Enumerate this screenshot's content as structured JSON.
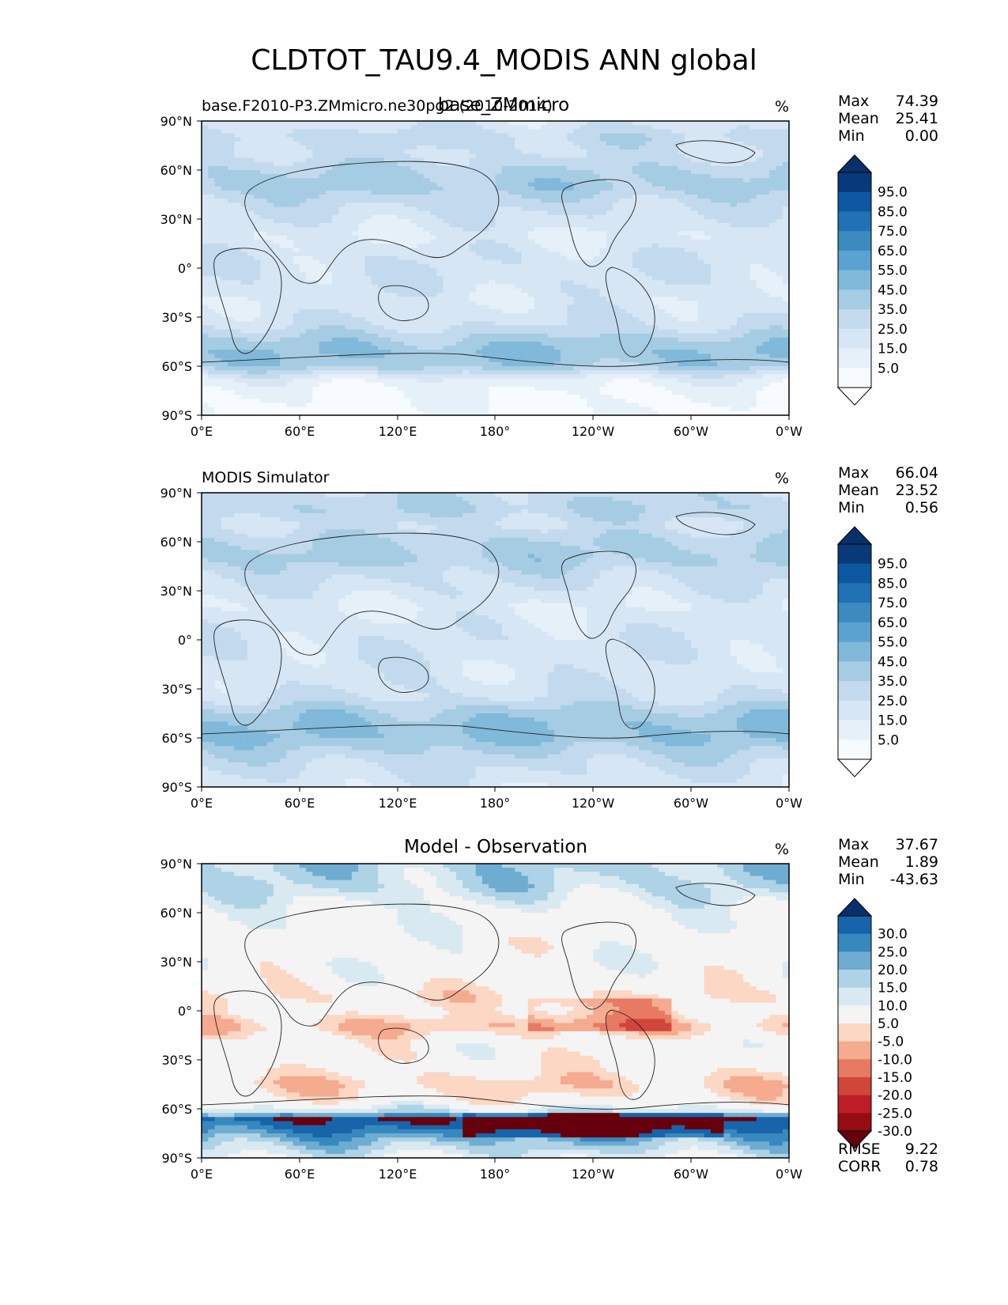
{
  "figure": {
    "title": "CLDTOT_TAU9.4_MODIS ANN global"
  },
  "chart_data": [
    {
      "type": "heatmap",
      "title_left": "base.F2010-P3.ZMmicro.ne30pg2 (2010-2014)",
      "title_center": "base_ZMmicro",
      "title_right": "%",
      "x_ticks": [
        "0°E",
        "60°E",
        "120°E",
        "180°",
        "120°W",
        "60°W",
        "0°W"
      ],
      "y_ticks": [
        "90°S",
        "60°S",
        "30°S",
        "0°",
        "30°N",
        "60°N",
        "90°N"
      ],
      "stats": [
        {
          "label": "Max",
          "value": "74.39"
        },
        {
          "label": "Mean",
          "value": "25.41"
        },
        {
          "label": "Min",
          "value": "0.00"
        }
      ],
      "colorbar": {
        "labels": [
          "95.0",
          "85.0",
          "75.0",
          "65.0",
          "55.0",
          "45.0",
          "35.0",
          "25.0",
          "15.0",
          "5.0"
        ],
        "colors": [
          "#f7fbff",
          "#e6f0f9",
          "#d7e6f4",
          "#c3daee",
          "#a5cce3",
          "#80b9da",
          "#5ba2d0",
          "#3d8ac1",
          "#2271b4",
          "#0d58a1",
          "#083a7a"
        ],
        "extend_top": "#08306b",
        "extend_bottom": "#ffffff"
      },
      "field": {
        "zonal_mean": [
          [
            -90,
            2
          ],
          [
            -75,
            5
          ],
          [
            -68,
            12
          ],
          [
            -60,
            40
          ],
          [
            -52,
            45
          ],
          [
            -45,
            40
          ],
          [
            -35,
            25
          ],
          [
            -20,
            18
          ],
          [
            -10,
            22
          ],
          [
            0,
            23
          ],
          [
            8,
            22
          ],
          [
            20,
            15
          ],
          [
            30,
            22
          ],
          [
            40,
            28
          ],
          [
            50,
            40
          ],
          [
            60,
            35
          ],
          [
            70,
            25
          ],
          [
            80,
            30
          ],
          [
            90,
            20
          ]
        ]
      }
    },
    {
      "type": "heatmap",
      "title_left": "MODIS Simulator",
      "title_center": "",
      "title_right": "%",
      "x_ticks": [
        "0°E",
        "60°E",
        "120°E",
        "180°",
        "120°W",
        "60°W",
        "0°W"
      ],
      "y_ticks": [
        "90°S",
        "60°S",
        "30°S",
        "0°",
        "30°N",
        "60°N",
        "90°N"
      ],
      "stats": [
        {
          "label": "Max",
          "value": "66.04"
        },
        {
          "label": "Mean",
          "value": "23.52"
        },
        {
          "label": "Min",
          "value": "0.56"
        }
      ],
      "colorbar": {
        "labels": [
          "95.0",
          "85.0",
          "75.0",
          "65.0",
          "55.0",
          "45.0",
          "35.0",
          "25.0",
          "15.0",
          "5.0"
        ],
        "colors": [
          "#f7fbff",
          "#e6f0f9",
          "#d7e6f4",
          "#c3daee",
          "#a5cce3",
          "#80b9da",
          "#5ba2d0",
          "#3d8ac1",
          "#2271b4",
          "#0d58a1",
          "#083a7a"
        ],
        "extend_top": "#08306b",
        "extend_bottom": "#ffffff"
      },
      "field": {
        "zonal_mean": [
          [
            -90,
            20
          ],
          [
            -75,
            28
          ],
          [
            -68,
            35
          ],
          [
            -60,
            45
          ],
          [
            -52,
            45
          ],
          [
            -45,
            40
          ],
          [
            -35,
            25
          ],
          [
            -20,
            20
          ],
          [
            -10,
            22
          ],
          [
            0,
            22
          ],
          [
            8,
            20
          ],
          [
            20,
            15
          ],
          [
            30,
            22
          ],
          [
            40,
            28
          ],
          [
            50,
            38
          ],
          [
            60,
            35
          ],
          [
            70,
            25
          ],
          [
            80,
            35
          ],
          [
            90,
            30
          ]
        ]
      }
    },
    {
      "type": "heatmap",
      "title_left": "",
      "title_center": "Model - Observation",
      "title_right": "%",
      "x_ticks": [
        "0°E",
        "60°E",
        "120°E",
        "180°",
        "120°W",
        "60°W",
        "0°W"
      ],
      "y_ticks": [
        "90°S",
        "60°S",
        "30°S",
        "0°",
        "30°N",
        "60°N",
        "90°N"
      ],
      "stats": [
        {
          "label": "Max",
          "value": "37.67"
        },
        {
          "label": "Mean",
          "value": "1.89"
        },
        {
          "label": "Min",
          "value": "-43.63"
        }
      ],
      "extra_stats": [
        {
          "label": "RMSE",
          "value": "9.22"
        },
        {
          "label": "CORR",
          "value": "0.78"
        }
      ],
      "colorbar": {
        "labels": [
          "30.0",
          "25.0",
          "20.0",
          "15.0",
          "10.0",
          "5.0",
          "-5.0",
          "-10.0",
          "-15.0",
          "-20.0",
          "-25.0",
          "-30.0"
        ],
        "colors": [
          "#970b13",
          "#bd1d24",
          "#d1453a",
          "#e67a62",
          "#f4ab8f",
          "#fbd7c4",
          "#f4f4f4",
          "#d9e9f1",
          "#aed2e6",
          "#6eacd1",
          "#3788be",
          "#1764ab"
        ],
        "extend_top": "#08306b",
        "extend_bottom": "#67000d"
      },
      "field": {
        "zonal_mean": [
          [
            -90,
            -5
          ],
          [
            -80,
            -15
          ],
          [
            -72,
            -25
          ],
          [
            -66,
            -30
          ],
          [
            -62,
            -10
          ],
          [
            -55,
            3
          ],
          [
            -45,
            8
          ],
          [
            -35,
            2
          ],
          [
            -20,
            0
          ],
          [
            -10,
            10
          ],
          [
            0,
            2
          ],
          [
            8,
            5
          ],
          [
            20,
            0
          ],
          [
            30,
            -2
          ],
          [
            40,
            0
          ],
          [
            50,
            -2
          ],
          [
            60,
            -2
          ],
          [
            75,
            -10
          ],
          [
            90,
            -12
          ]
        ]
      }
    }
  ]
}
